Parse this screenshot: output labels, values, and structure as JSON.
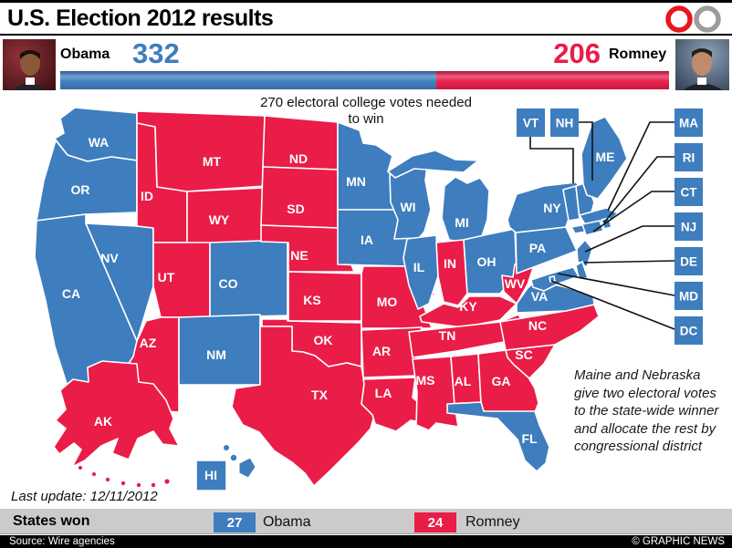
{
  "header": {
    "title": "U.S. Election 2012 results"
  },
  "icons": {
    "red_ring_color": "#e8151f",
    "gray_ring_color": "#9d9d9d"
  },
  "colors": {
    "obama": "#3E7DBE",
    "romney": "#EA1C48"
  },
  "scoreboard": {
    "obama": {
      "name": "Obama",
      "votes": "332"
    },
    "romney": {
      "name": "Romney",
      "votes": "206"
    },
    "needed_line1": "270 electoral college votes needed",
    "needed_line2": "to win",
    "obama_share": 0.6171
  },
  "map": {
    "note_lines": [
      "Maine and Nebraska",
      "give two electoral votes",
      "to the state-wide winner",
      "and allocate the rest by",
      "congressional district"
    ],
    "last_update": "Last update: 12/11/2012",
    "callouts": [
      "VT",
      "NH",
      "MA",
      "RI",
      "CT",
      "NJ",
      "DE",
      "MD",
      "DC"
    ],
    "states": [
      {
        "abbr": "WA",
        "party": "obama"
      },
      {
        "abbr": "OR",
        "party": "obama"
      },
      {
        "abbr": "CA",
        "party": "obama"
      },
      {
        "abbr": "NV",
        "party": "obama"
      },
      {
        "abbr": "ID",
        "party": "romney"
      },
      {
        "abbr": "MT",
        "party": "romney"
      },
      {
        "abbr": "WY",
        "party": "romney"
      },
      {
        "abbr": "UT",
        "party": "romney"
      },
      {
        "abbr": "CO",
        "party": "obama"
      },
      {
        "abbr": "AZ",
        "party": "romney"
      },
      {
        "abbr": "NM",
        "party": "obama"
      },
      {
        "abbr": "ND",
        "party": "romney"
      },
      {
        "abbr": "SD",
        "party": "romney"
      },
      {
        "abbr": "NE",
        "party": "romney"
      },
      {
        "abbr": "KS",
        "party": "romney"
      },
      {
        "abbr": "OK",
        "party": "romney"
      },
      {
        "abbr": "TX",
        "party": "romney"
      },
      {
        "abbr": "MN",
        "party": "obama"
      },
      {
        "abbr": "IA",
        "party": "obama"
      },
      {
        "abbr": "MO",
        "party": "romney"
      },
      {
        "abbr": "AR",
        "party": "romney"
      },
      {
        "abbr": "LA",
        "party": "romney"
      },
      {
        "abbr": "WI",
        "party": "obama"
      },
      {
        "abbr": "MI",
        "party": "obama"
      },
      {
        "abbr": "IL",
        "party": "obama"
      },
      {
        "abbr": "IN",
        "party": "romney"
      },
      {
        "abbr": "OH",
        "party": "obama"
      },
      {
        "abbr": "KY",
        "party": "romney"
      },
      {
        "abbr": "TN",
        "party": "romney"
      },
      {
        "abbr": "MS",
        "party": "romney"
      },
      {
        "abbr": "AL",
        "party": "romney"
      },
      {
        "abbr": "GA",
        "party": "romney"
      },
      {
        "abbr": "FL",
        "party": "obama"
      },
      {
        "abbr": "SC",
        "party": "romney"
      },
      {
        "abbr": "NC",
        "party": "romney"
      },
      {
        "abbr": "VA",
        "party": "obama"
      },
      {
        "abbr": "WV",
        "party": "romney"
      },
      {
        "abbr": "PA",
        "party": "obama"
      },
      {
        "abbr": "NY",
        "party": "obama"
      },
      {
        "abbr": "VT",
        "party": "obama"
      },
      {
        "abbr": "NH",
        "party": "obama"
      },
      {
        "abbr": "ME",
        "party": "obama"
      },
      {
        "abbr": "MA",
        "party": "obama"
      },
      {
        "abbr": "CT",
        "party": "obama"
      },
      {
        "abbr": "RI",
        "party": "obama"
      },
      {
        "abbr": "NJ",
        "party": "obama"
      },
      {
        "abbr": "DE",
        "party": "obama"
      },
      {
        "abbr": "MD",
        "party": "obama"
      },
      {
        "abbr": "DC",
        "party": "obama"
      },
      {
        "abbr": "AK",
        "party": "romney"
      },
      {
        "abbr": "HI",
        "party": "obama"
      }
    ]
  },
  "legend": {
    "title": "States won",
    "obama_count": "27",
    "obama_label": "Obama",
    "romney_count": "24",
    "romney_label": "Romney"
  },
  "footer": {
    "source": "Source: Wire agencies",
    "credit": "© GRAPHIC NEWS"
  }
}
